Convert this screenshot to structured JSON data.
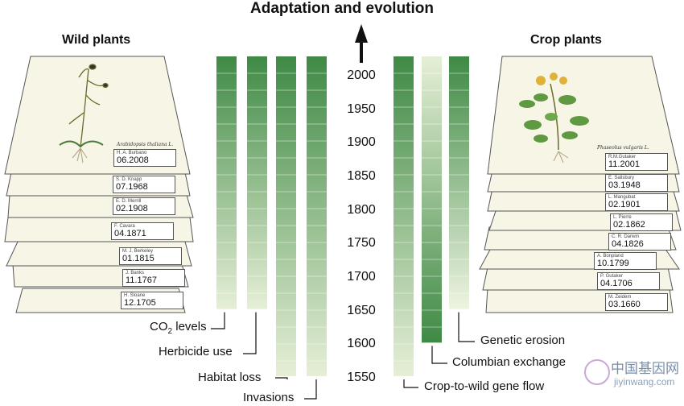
{
  "title": "Adaptation and evolution",
  "wild_title": "Wild plants",
  "crop_title": "Crop plants",
  "years": [
    "2000",
    "1950",
    "1900",
    "1850",
    "1800",
    "1750",
    "1700",
    "1650",
    "1600",
    "1550"
  ],
  "wild_species": "Arabidopsis thaliana L.",
  "crop_species": "Phaseolus vulgaris L.",
  "wild_sheets": [
    {
      "name": "H. A. Burbano",
      "date": "06.2008"
    },
    {
      "name": "S. D. Knapp",
      "date": "07.1968"
    },
    {
      "name": "E. D. Merrill",
      "date": "02.1908"
    },
    {
      "name": "F. Cavara",
      "date": "04.1871"
    },
    {
      "name": "M. J. Berkeley",
      "date": "01.1815"
    },
    {
      "name": "J. Banks",
      "date": "11.1767"
    },
    {
      "name": "H. Sloane",
      "date": "12.1705"
    }
  ],
  "crop_sheets": [
    {
      "name": "R.M.Gutaker",
      "date": "11.2001"
    },
    {
      "name": "E. Salisbury",
      "date": "03.1948"
    },
    {
      "name": "L. Mangubat",
      "date": "02.1901"
    },
    {
      "name": "L. Pierre",
      "date": "02.1862"
    },
    {
      "name": "C. R. Darwin",
      "date": "04.1826"
    },
    {
      "name": "A. Bonpland",
      "date": "10.1799"
    },
    {
      "name": "P. Gutaker",
      "date": "04.1706"
    },
    {
      "name": "M. Zeidem",
      "date": "03.1660"
    }
  ],
  "bars_left": [
    {
      "label": "CO2 levels",
      "label_main": "CO",
      "label_sub": "2",
      "label_rest": " levels",
      "start_year": 1650
    },
    {
      "label": "Herbicide use",
      "start_year": 1650
    },
    {
      "label": "Habitat loss",
      "start_year": 1550
    },
    {
      "label": "Invasions",
      "start_year": 1550
    }
  ],
  "bars_right": [
    {
      "label": "Crop-to-wild gene flow",
      "start_year": 1550
    },
    {
      "label": "Columbian exchange",
      "start_year": 1600
    },
    {
      "label": "Genetic erosion",
      "start_year": 1650
    }
  ],
  "colors": {
    "dark_green": "#3f8a45",
    "light_green": "#e6efd6",
    "sheet": "#f7f5e6",
    "sheet_edge": "#555555"
  },
  "watermark": {
    "cn": "中国基因网",
    "en": "jiyinwang.com"
  }
}
